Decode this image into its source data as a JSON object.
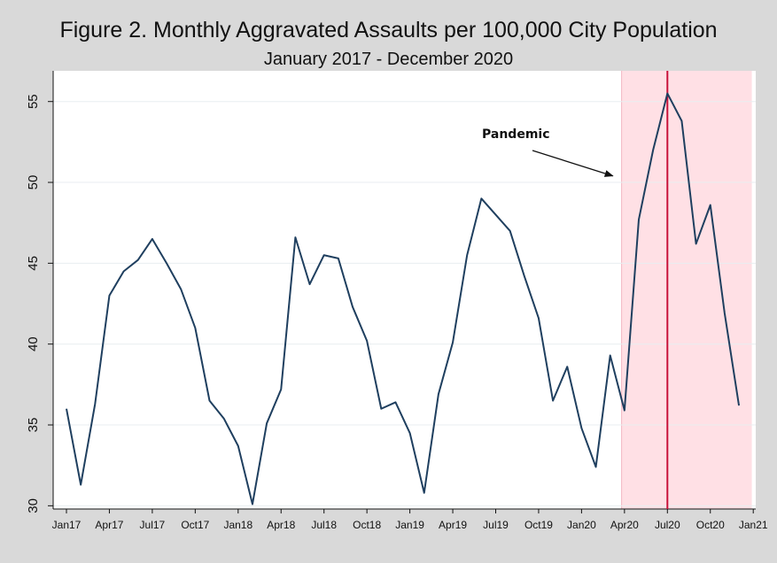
{
  "chart_data": {
    "type": "line",
    "title": "Figure 2. Monthly Aggravated Assaults per 100,000 City Population",
    "subtitle": "January 2017 - December 2020",
    "xlabel": "",
    "ylabel": "",
    "x_tick_labels": [
      "Jan17",
      "Apr17",
      "Jul17",
      "Oct17",
      "Jan18",
      "Apr18",
      "Jul18",
      "Oct18",
      "Jan19",
      "Apr19",
      "Jul19",
      "Oct19",
      "Jan20",
      "Apr20",
      "Jul20",
      "Oct20",
      "Jan21"
    ],
    "y_ticks": [
      30,
      35,
      40,
      45,
      50,
      55
    ],
    "ylim": [
      29.8,
      56.9
    ],
    "grid": "horizontal",
    "series": [
      {
        "name": "",
        "color": "#1f3f5f",
        "x": [
          "Jan17",
          "Feb17",
          "Mar17",
          "Apr17",
          "May17",
          "Jun17",
          "Jul17",
          "Aug17",
          "Sep17",
          "Oct17",
          "Nov17",
          "Dec17",
          "Jan18",
          "Feb18",
          "Mar18",
          "Apr18",
          "May18",
          "Jun18",
          "Jul18",
          "Aug18",
          "Sep18",
          "Oct18",
          "Nov18",
          "Dec18",
          "Jan19",
          "Feb19",
          "Mar19",
          "Apr19",
          "May19",
          "Jun19",
          "Jul19",
          "Aug19",
          "Sep19",
          "Oct19",
          "Nov19",
          "Dec19",
          "Jan20",
          "Feb20",
          "Mar20",
          "Apr20",
          "May20",
          "Jun20",
          "Jul20",
          "Aug20",
          "Sep20",
          "Oct20",
          "Nov20",
          "Dec20"
        ],
        "values": [
          36.0,
          31.3,
          36.3,
          43.0,
          44.5,
          45.2,
          46.5,
          45.0,
          43.4,
          41.0,
          36.5,
          35.4,
          33.7,
          30.1,
          35.1,
          37.2,
          46.6,
          43.7,
          45.5,
          45.3,
          42.3,
          40.2,
          36.0,
          36.4,
          34.5,
          30.8,
          36.9,
          40.1,
          45.5,
          49.0,
          48.0,
          47.0,
          44.2,
          41.6,
          36.5,
          38.6,
          34.8,
          32.4,
          39.3,
          35.9,
          47.7,
          52.0,
          55.5,
          53.8,
          46.2,
          48.6,
          41.9,
          36.2
        ]
      }
    ],
    "shaded_region": {
      "from": "Mar20",
      "to": "Dec20",
      "color": "#ffe0e5"
    },
    "vertical_line": {
      "at": "Jul20",
      "color": "#c8103a"
    },
    "annotations": [
      {
        "text": "Pandemic",
        "arrow_to": {
          "x": "Mar20",
          "y": 50.4
        }
      }
    ]
  }
}
